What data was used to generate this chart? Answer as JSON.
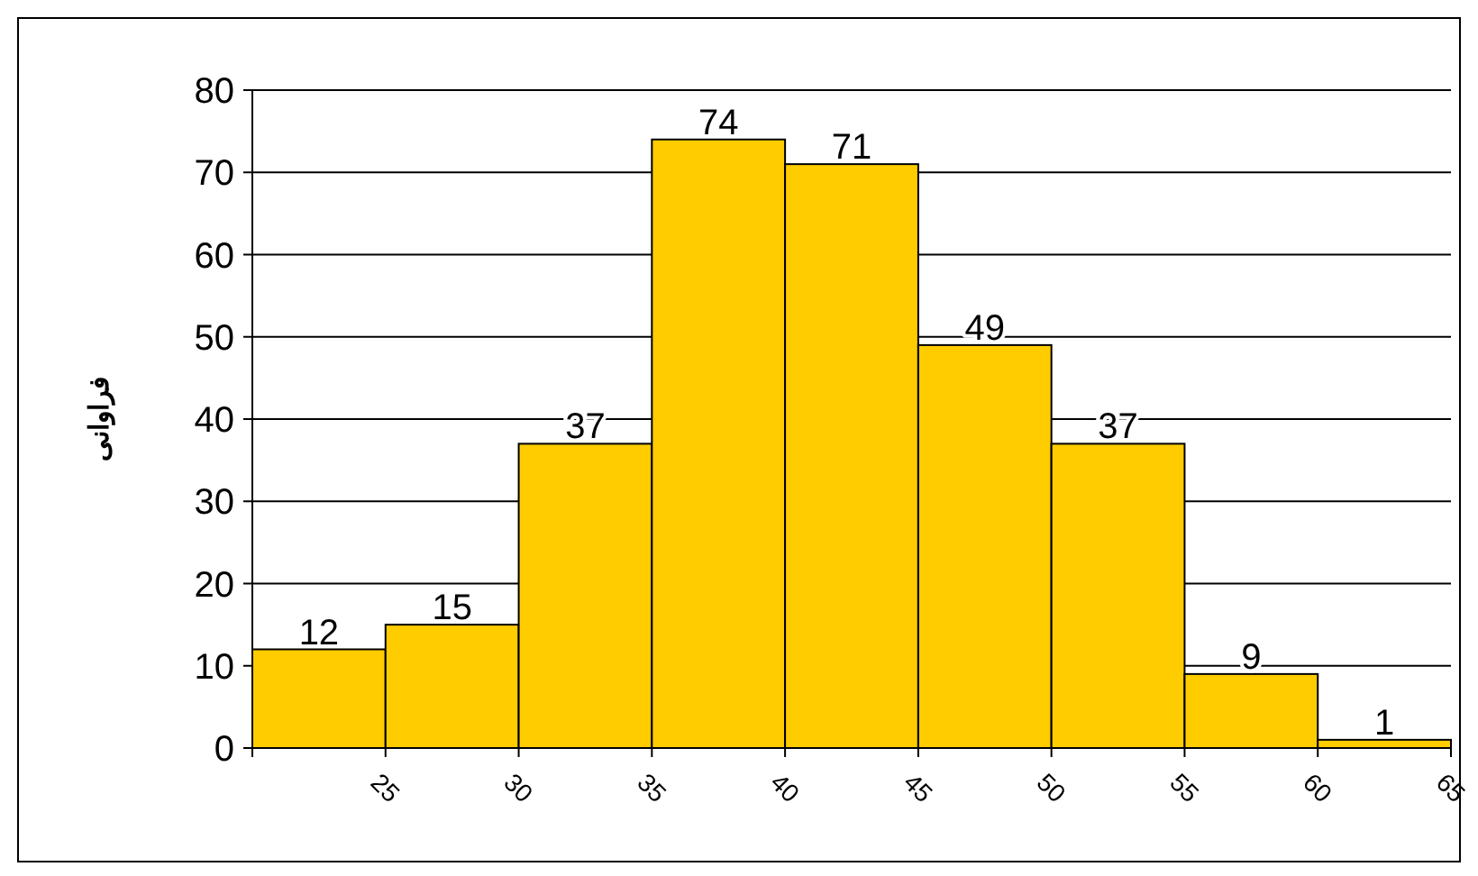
{
  "chart_data": {
    "type": "histogram",
    "ylabel": "فراوانی",
    "bins": [
      20,
      25,
      30,
      35,
      40,
      45,
      50,
      55,
      60,
      65
    ],
    "values": [
      12,
      15,
      37,
      74,
      71,
      49,
      37,
      9,
      1
    ],
    "color": "#ffcc00",
    "xlim": [
      20,
      65
    ],
    "xticks": [
      {
        "value": 20,
        "label": null
      },
      25,
      30,
      35,
      40,
      45,
      50,
      55,
      60,
      65
    ],
    "ylim": [
      0,
      80
    ],
    "yticks": [
      0,
      10,
      20,
      30,
      40,
      50,
      60,
      70,
      80
    ],
    "grid": "y",
    "data_labels": true
  }
}
